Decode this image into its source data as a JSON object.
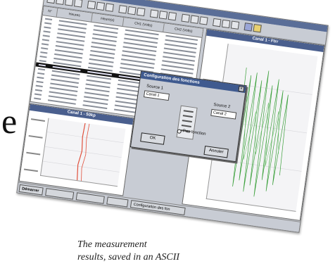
{
  "side_letter": "e",
  "caption": {
    "line1": "The measurement",
    "line2": "results, saved in an ASCII"
  },
  "table": {
    "columns": [
      "N°",
      "Heures",
      "Heure(s)",
      "CH1 (Volts)",
      "CH2 (Volts)"
    ]
  },
  "chart_left": {
    "title": "Canal 1 - 50kp"
  },
  "chart_right": {
    "title": "Canal 1 - Ftrr"
  },
  "dialog": {
    "title": "Configuration des fonctions",
    "close": "×",
    "source1_label": "Source 1",
    "source2_label": "Source 2",
    "source1_value": "Canal 1",
    "source2_value": "Canal 2",
    "no_function": "Pas fonction",
    "ok": "OK",
    "cancel": "Annuler"
  },
  "taskbar": {
    "start": "Démarrer",
    "item_config": "Configuration des fon"
  },
  "colors": {
    "window_title": "#4a5f8e",
    "left_trace": "#e0503c",
    "right_trace": "#3aa03a"
  }
}
